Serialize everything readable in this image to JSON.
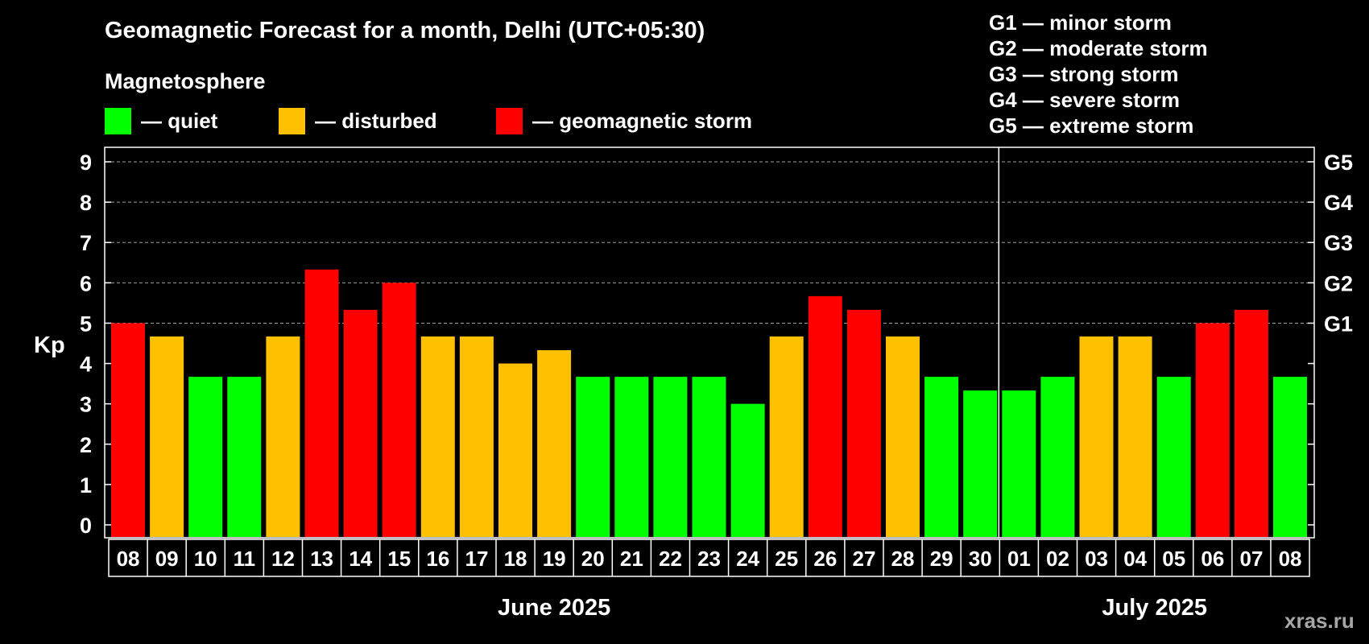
{
  "chart_data": {
    "type": "bar",
    "title": "Geomagnetic Forecast for a month, Delhi (UTC+05:30)",
    "subtitle": "Magnetosphere",
    "ylabel": "Kp",
    "ylim": [
      0,
      9
    ],
    "yticks": [
      "0",
      "1",
      "2",
      "3",
      "4",
      "5",
      "6",
      "7",
      "8",
      "9"
    ],
    "right_ticks": [
      {
        "value": 5,
        "label": "G1"
      },
      {
        "value": 6,
        "label": "G2"
      },
      {
        "value": 7,
        "label": "G3"
      },
      {
        "value": 8,
        "label": "G4"
      },
      {
        "value": 9,
        "label": "G5"
      }
    ],
    "categories": [
      "08",
      "09",
      "10",
      "11",
      "12",
      "13",
      "14",
      "15",
      "16",
      "17",
      "18",
      "19",
      "20",
      "21",
      "22",
      "23",
      "24",
      "25",
      "26",
      "27",
      "28",
      "29",
      "30",
      "01",
      "02",
      "03",
      "04",
      "05",
      "06",
      "07",
      "08"
    ],
    "values": [
      5.0,
      4.67,
      3.67,
      3.67,
      4.67,
      6.33,
      5.33,
      6.0,
      4.67,
      4.67,
      4.0,
      4.33,
      3.67,
      3.67,
      3.67,
      3.67,
      3.0,
      4.67,
      5.67,
      5.33,
      4.67,
      3.67,
      3.33,
      3.33,
      3.67,
      4.67,
      4.67,
      3.67,
      5.0,
      5.33,
      3.67
    ],
    "status": [
      "storm",
      "disturbed",
      "quiet",
      "quiet",
      "disturbed",
      "storm",
      "storm",
      "storm",
      "disturbed",
      "disturbed",
      "disturbed",
      "disturbed",
      "quiet",
      "quiet",
      "quiet",
      "quiet",
      "quiet",
      "disturbed",
      "storm",
      "storm",
      "disturbed",
      "quiet",
      "quiet",
      "quiet",
      "quiet",
      "disturbed",
      "disturbed",
      "quiet",
      "storm",
      "storm",
      "quiet"
    ],
    "months": [
      {
        "label": "June 2025",
        "first_index": 0,
        "last_index": 22
      },
      {
        "label": "July 2025",
        "first_index": 23,
        "last_index": 30
      }
    ],
    "month_divider_after_index": 22,
    "grid_from_value": 5,
    "legend": [
      {
        "key": "quiet",
        "label": "— quiet",
        "color": "#00ff00"
      },
      {
        "key": "disturbed",
        "label": "— disturbed",
        "color": "#ffc000"
      },
      {
        "key": "storm",
        "label": "— geomagnetic storm",
        "color": "#ff0000"
      }
    ],
    "g_scale": [
      "G1 — minor storm",
      "G2 — moderate storm",
      "G3 — strong storm",
      "G4 — severe storm",
      "G5 — extreme storm"
    ]
  },
  "watermark": "xras.ru",
  "colors": {
    "background": "#000000",
    "foreground": "#ffffff",
    "grid": "#a0a0a0",
    "watermark": "#a6a6a6"
  }
}
